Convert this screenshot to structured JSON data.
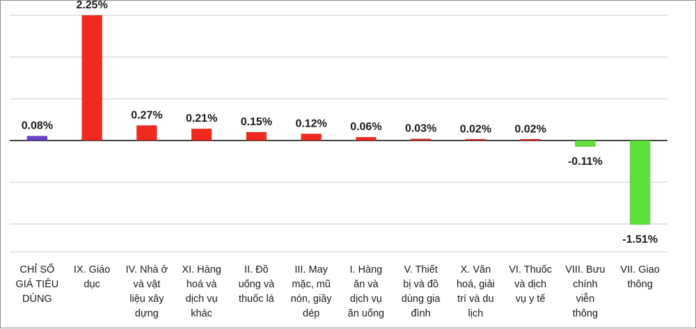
{
  "chart_data": {
    "type": "bar",
    "categories": [
      "CHỈ SỐ GIÁ TIÊU DÙNG",
      "IX. Giáo dục",
      "IV. Nhà ở và vật liệu xây dựng",
      "XI. Hàng hoá và dịch vụ khác",
      "II. Đồ uống và thuốc lá",
      "III. May mặc, mũ nón, giầy dép",
      "I. Hàng ăn và dịch vụ ăn uống",
      "V. Thiết bị và đồ dùng gia đình",
      "X. Văn hoá, giải trí và du lịch",
      "VI. Thuốc và dịch vụ y tế",
      "VIII. Bưu chính viễn thông",
      "VII. Giao thông"
    ],
    "category_lines": [
      [
        "CHỈ SỐ",
        "GIÁ TIÊU",
        "DÙNG"
      ],
      [
        "IX. Giáo",
        "dục"
      ],
      [
        "IV. Nhà ở",
        "và vật",
        "liệu xây",
        "dựng"
      ],
      [
        "XI. Hàng",
        "hoá và",
        "dịch vụ",
        "khác"
      ],
      [
        "II. Đồ",
        "uống và",
        "thuốc lá"
      ],
      [
        "III. May",
        "mặc, mũ",
        "nón, giầy",
        "dép"
      ],
      [
        "I. Hàng",
        "ăn và",
        "dịch vụ",
        "ăn uống"
      ],
      [
        "V. Thiết",
        "bị và đồ",
        "dùng gia",
        "đình"
      ],
      [
        "X. Văn",
        "hoá, giải",
        "trí và du",
        "lịch"
      ],
      [
        "VI. Thuốc",
        "và dịch",
        "vụ y tế"
      ],
      [
        "VIII. Bưu",
        "chính",
        "viễn",
        "thông"
      ],
      [
        "VII. Giao",
        "thông"
      ]
    ],
    "values": [
      0.08,
      2.25,
      0.27,
      0.21,
      0.15,
      0.12,
      0.06,
      0.03,
      0.02,
      0.02,
      -0.11,
      -1.51
    ],
    "value_labels": [
      "0.08%",
      "2.25%",
      "0.27%",
      "0.21%",
      "0.15%",
      "0.12%",
      "0.06%",
      "0.03%",
      "0.02%",
      "0.02%",
      "-0.11%",
      "-1.51%"
    ],
    "colors": [
      "#6a3fc9",
      "#f02a1e",
      "#f02a1e",
      "#f02a1e",
      "#f02a1e",
      "#f02a1e",
      "#f02a1e",
      "#f02a1e",
      "#f02a1e",
      "#f02a1e",
      "#5fe03c",
      "#5fe03c"
    ],
    "ylim": [
      -2.0,
      2.25
    ],
    "gridlines": [
      2.25,
      1.5,
      0.75,
      0,
      -0.75,
      -1.5,
      -2.0
    ],
    "grid": true,
    "title": "",
    "xlabel": "",
    "ylabel": ""
  }
}
